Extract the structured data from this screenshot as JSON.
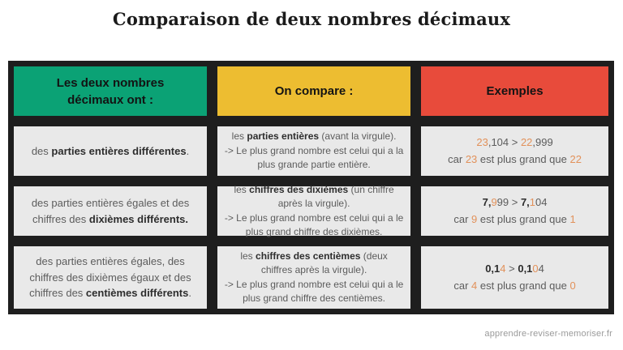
{
  "page": {
    "title": "Comparaison de deux nombres décimaux",
    "watermark": "apprendre-reviser-memoriser.fr"
  },
  "colors": {
    "green": "#0ba275",
    "yellow": "#edbd31",
    "red": "#e84b3b",
    "orange": "#e2915a",
    "frame": "#1e1e1e",
    "cellbg": "#e9e9e9",
    "gray": "#5c5c5c"
  },
  "table": {
    "headers": [
      {
        "label": "Les deux nombres décimaux ont :"
      },
      {
        "label": "On compare :"
      },
      {
        "label": "Exemples"
      }
    ],
    "rows": [
      {
        "condition": [
          {
            "t": "des "
          },
          {
            "t": "parties entières différentes",
            "s": "b"
          },
          {
            "t": "."
          }
        ],
        "compare": [
          {
            "t": "les "
          },
          {
            "t": "parties entières",
            "s": "b"
          },
          {
            "t": " (avant la virgule).\n-> Le plus grand nombre est celui qui a la plus grande partie entière."
          }
        ],
        "example": [
          {
            "t": "23",
            "s": "o"
          },
          {
            "t": ",104 > "
          },
          {
            "t": "22",
            "s": "o"
          },
          {
            "t": ",999\ncar "
          },
          {
            "t": "23",
            "s": "o"
          },
          {
            "t": " est plus grand que "
          },
          {
            "t": "22",
            "s": "o"
          }
        ]
      },
      {
        "condition": [
          {
            "t": "des parties entières égales et des chiffres des "
          },
          {
            "t": "dixièmes différents.",
            "s": "b"
          }
        ],
        "compare": [
          {
            "t": "les "
          },
          {
            "t": "chiffres des dixièmes",
            "s": "b"
          },
          {
            "t": " (un chiffre  après la virgule).\n-> Le plus grand nombre est celui qui a le plus grand chiffre des dixièmes."
          }
        ],
        "example": [
          {
            "t": "7,",
            "s": "b"
          },
          {
            "t": "9",
            "s": "o"
          },
          {
            "t": "99 > "
          },
          {
            "t": "7,",
            "s": "b"
          },
          {
            "t": "1",
            "s": "o"
          },
          {
            "t": "04\ncar "
          },
          {
            "t": "9",
            "s": "o"
          },
          {
            "t": " est plus grand que "
          },
          {
            "t": "1",
            "s": "o"
          }
        ]
      },
      {
        "condition": [
          {
            "t": "des parties entières égales, des chiffres des dixièmes égaux et des chiffres des "
          },
          {
            "t": "centièmes différents",
            "s": "b"
          },
          {
            "t": "."
          }
        ],
        "compare": [
          {
            "t": "les "
          },
          {
            "t": "chiffres des centièmes",
            "s": "b"
          },
          {
            "t": " (deux chiffres après la virgule).\n-> Le plus grand nombre est celui qui a le plus grand chiffre des centièmes."
          }
        ],
        "example": [
          {
            "t": "0,1",
            "s": "b"
          },
          {
            "t": "4",
            "s": "o"
          },
          {
            "t": " > "
          },
          {
            "t": "0,1",
            "s": "b"
          },
          {
            "t": "0",
            "s": "o"
          },
          {
            "t": "4\ncar "
          },
          {
            "t": "4",
            "s": "o"
          },
          {
            "t": " est plus grand que "
          },
          {
            "t": "0",
            "s": "o"
          }
        ]
      }
    ]
  }
}
